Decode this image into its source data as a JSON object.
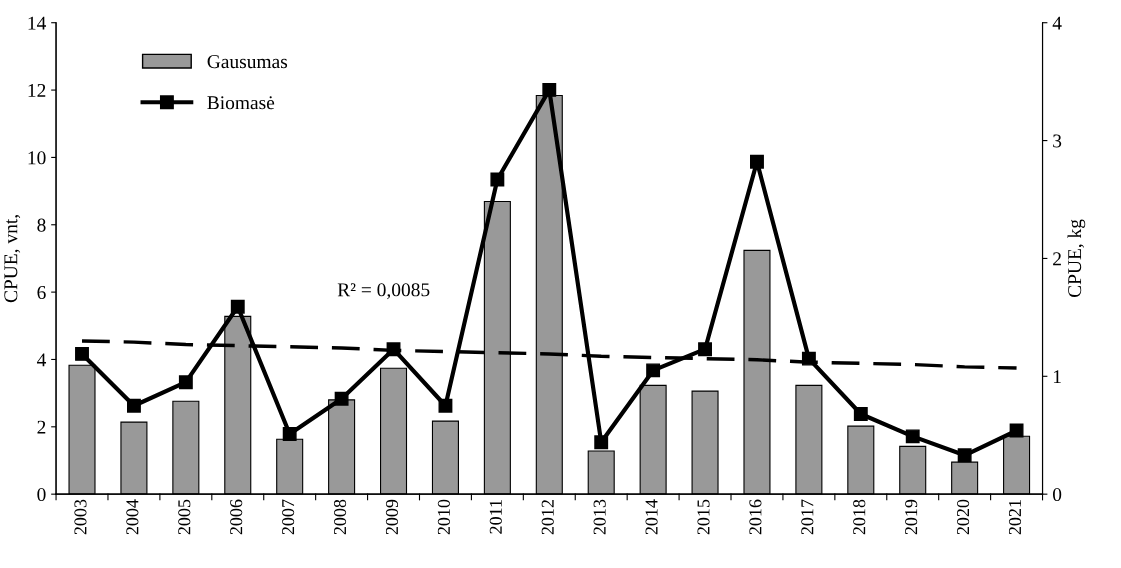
{
  "chart_data": {
    "type": "bar",
    "categories": [
      "2003",
      "2004",
      "2005",
      "2006",
      "2007",
      "2008",
      "2009",
      "2010",
      "2011",
      "2012",
      "2013",
      "2014",
      "2015",
      "2016",
      "2017",
      "2018",
      "2019",
      "2020",
      "2021"
    ],
    "series": [
      {
        "name": "Gausumas",
        "color": "#999999",
        "values": [
          3.83,
          2.14,
          2.76,
          5.28,
          1.63,
          2.8,
          3.74,
          2.17,
          8.69,
          11.84,
          1.28,
          3.23,
          3.06,
          7.24,
          3.23,
          2.02,
          1.42,
          0.95,
          1.72
        ]
      },
      {
        "name": "Biomasė",
        "type": "line",
        "axis": "y2",
        "color": "#000000",
        "marker": "square",
        "line_style": "solid",
        "values": [
          1.19,
          0.75,
          0.95,
          1.59,
          0.51,
          0.81,
          1.23,
          0.75,
          2.67,
          3.43,
          0.44,
          1.05,
          1.23,
          2.82,
          1.15,
          0.68,
          0.49,
          0.33,
          0.54
        ]
      },
      {
        "type": "line",
        "axis": "y2",
        "color": "#000000",
        "marker": "none",
        "line_style": "dashed",
        "values": [
          1.3,
          1.29,
          1.27,
          1.26,
          1.25,
          1.24,
          1.22,
          1.21,
          1.2,
          1.19,
          1.17,
          1.16,
          1.15,
          1.14,
          1.12,
          1.11,
          1.1,
          1.08,
          1.07
        ]
      }
    ],
    "ylabel": "CPUE, vnt,",
    "y2label": "CPUE, kg",
    "ylim": [
      0,
      14
    ],
    "yticks": [
      0,
      2,
      4,
      6,
      8,
      10,
      12,
      14
    ],
    "y2lim": [
      0,
      4
    ],
    "y2ticks": [
      0,
      1,
      2,
      3,
      4
    ],
    "annotations": [
      "R² = 0,0085"
    ],
    "grid": false,
    "legend": "top left"
  }
}
